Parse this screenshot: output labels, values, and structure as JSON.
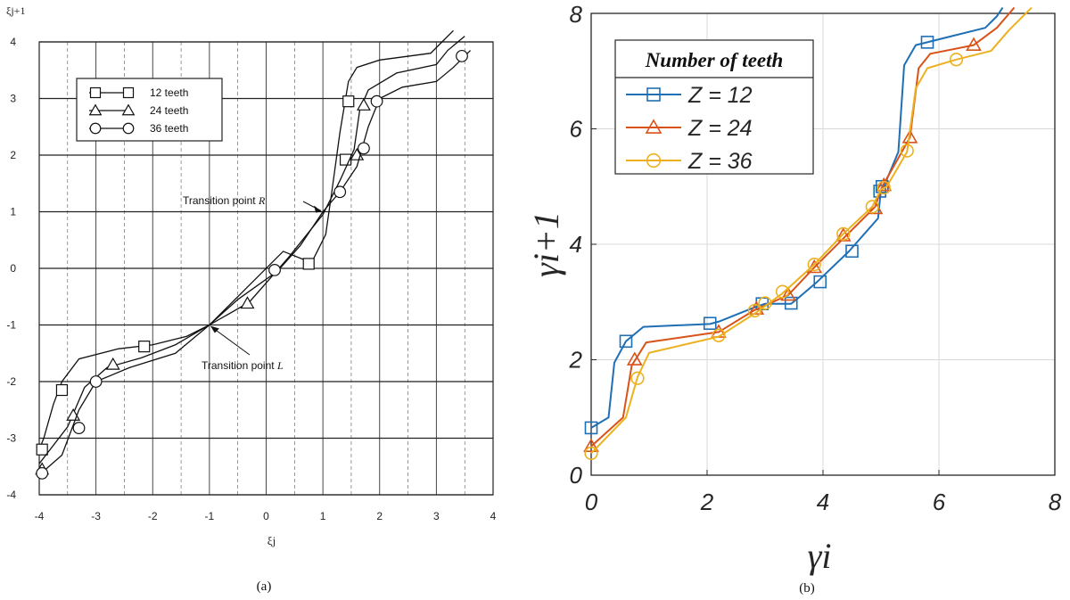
{
  "chart_data": [
    {
      "type": "line",
      "panel_label": "(a)",
      "xlabel": "ξj",
      "ylabel": "ξj+1",
      "xlim": [
        -4,
        4
      ],
      "ylim": [
        -4,
        4
      ],
      "xticks": [
        -4,
        -3,
        -2,
        -1,
        0,
        1,
        2,
        3,
        4
      ],
      "yticks": [
        -4,
        -3,
        -2,
        -1,
        0,
        1,
        2,
        3,
        4
      ],
      "xtick_labels": [
        "-4",
        "-3",
        "-2",
        "-1",
        "0",
        "1",
        "2",
        "3",
        "4"
      ],
      "ytick_labels": [
        "-4",
        "-3",
        "-2",
        "-1",
        "0",
        "1",
        "2",
        "3",
        "4"
      ],
      "grid": true,
      "legend_position": "top-left",
      "series": [
        {
          "name": "12 teeth",
          "marker": "square",
          "color": "#111111",
          "x": [
            -4.0,
            -3.92,
            -3.75,
            -3.6,
            -3.3,
            -2.6,
            -2.0,
            -1.4,
            -1.0,
            -0.4,
            0.3,
            0.8,
            1.05,
            1.15,
            1.3,
            1.45,
            1.6,
            2.0,
            2.9,
            3.1,
            3.3
          ],
          "y": [
            -3.2,
            -3.0,
            -2.4,
            -2.0,
            -1.6,
            -1.42,
            -1.35,
            -1.2,
            -1.0,
            -0.4,
            0.3,
            0.1,
            0.6,
            1.3,
            2.4,
            3.3,
            3.55,
            3.68,
            3.8,
            4.0,
            4.2
          ],
          "points_x": [
            -3.95,
            -3.6,
            -2.15,
            0.75,
            1.4,
            1.45
          ],
          "points_y": [
            -3.2,
            -2.15,
            -1.38,
            0.08,
            1.92,
            2.95
          ]
        },
        {
          "name": "24 teeth",
          "marker": "triangle",
          "color": "#111111",
          "x": [
            -4.0,
            -3.5,
            -3.2,
            -2.8,
            -2.2,
            -1.6,
            -1.0,
            -0.3,
            0.4,
            1.0,
            1.05,
            1.3,
            1.55,
            1.65,
            1.8,
            2.3,
            3.0,
            3.2,
            3.5
          ],
          "y": [
            -3.45,
            -2.8,
            -2.1,
            -1.75,
            -1.58,
            -1.35,
            -1.0,
            -0.6,
            0.2,
            0.95,
            1.05,
            1.55,
            2.1,
            2.8,
            3.15,
            3.45,
            3.6,
            3.85,
            4.1
          ],
          "points_x": [
            -3.95,
            -3.4,
            -2.7,
            -0.33,
            1.6,
            1.72
          ],
          "points_y": [
            -3.55,
            -2.6,
            -1.7,
            -0.62,
            2.0,
            2.88
          ]
        },
        {
          "name": "36 teeth",
          "marker": "circle",
          "color": "#111111",
          "x": [
            -4.0,
            -3.6,
            -3.3,
            -3.0,
            -2.4,
            -1.6,
            -1.0,
            -0.5,
            0.2,
            0.6,
            1.0,
            1.3,
            1.6,
            1.8,
            2.0,
            2.4,
            3.0,
            3.3,
            3.6
          ],
          "y": [
            -3.65,
            -3.3,
            -2.5,
            -2.0,
            -1.75,
            -1.5,
            -1.0,
            -0.55,
            -0.05,
            0.4,
            1.0,
            1.35,
            1.8,
            2.5,
            3.0,
            3.2,
            3.3,
            3.55,
            3.85
          ],
          "points_x": [
            -3.95,
            -3.3,
            -3.0,
            0.15,
            1.3,
            1.72,
            1.95,
            3.45
          ],
          "points_y": [
            -3.62,
            -2.82,
            -2.0,
            -0.03,
            1.35,
            2.12,
            2.95,
            3.75
          ]
        }
      ],
      "annotations": [
        {
          "text": "Transition point",
          "italic_part": "R",
          "at_x": 1.0,
          "at_y": 1.0
        },
        {
          "text": "Transition point",
          "italic_part": "L",
          "at_x": -1.0,
          "at_y": -1.0
        }
      ]
    },
    {
      "type": "line",
      "panel_label": "(b)",
      "xlabel": "γi",
      "ylabel": "γi+1",
      "xlim": [
        0,
        8
      ],
      "ylim": [
        0,
        8
      ],
      "xticks": [
        0,
        2,
        4,
        6,
        8
      ],
      "yticks": [
        0,
        2,
        4,
        6,
        8
      ],
      "xtick_labels": [
        "0",
        "2",
        "4",
        "6",
        "8"
      ],
      "ytick_labels": [
        "0",
        "2",
        "4",
        "6",
        "8"
      ],
      "grid": true,
      "legend_title": "Number of teeth",
      "legend_position": "top-left",
      "series": [
        {
          "name": "Z = 12",
          "marker": "square",
          "color": "#1f6fb5",
          "x": [
            0,
            0.3,
            0.4,
            0.6,
            0.9,
            2.05,
            2.2,
            2.8,
            3.0,
            3.45,
            3.55,
            3.9,
            4.45,
            4.95,
            5.0,
            5.05,
            5.3,
            5.4,
            5.6,
            5.8,
            6.2,
            6.8,
            7.0,
            7.1
          ],
          "y": [
            0.82,
            1.0,
            1.95,
            2.32,
            2.57,
            2.62,
            2.66,
            2.9,
            2.97,
            2.97,
            3.05,
            3.35,
            3.88,
            4.45,
            4.95,
            5.0,
            5.6,
            7.1,
            7.45,
            7.5,
            7.6,
            7.75,
            7.95,
            8.1
          ],
          "points_x": [
            0,
            0.6,
            2.05,
            2.95,
            3.45,
            3.95,
            4.5,
            4.98,
            5.02,
            5.8
          ],
          "points_y": [
            0.82,
            2.32,
            2.63,
            2.97,
            2.98,
            3.35,
            3.88,
            4.92,
            5.0,
            7.5
          ]
        },
        {
          "name": "Z = 24",
          "marker": "triangle",
          "color": "#d95319",
          "x": [
            0,
            0.55,
            0.7,
            0.95,
            2.2,
            2.8,
            3.4,
            3.85,
            4.4,
            4.9,
            5.0,
            5.05,
            5.5,
            5.65,
            5.85,
            6.6,
            7.0,
            7.3
          ],
          "y": [
            0.5,
            1.0,
            1.9,
            2.3,
            2.48,
            2.85,
            3.12,
            3.6,
            4.15,
            4.65,
            4.95,
            5.05,
            5.85,
            7.05,
            7.3,
            7.45,
            7.75,
            8.1
          ],
          "points_x": [
            0,
            0.75,
            2.2,
            2.85,
            3.4,
            3.85,
            4.35,
            4.9,
            5.05,
            5.5,
            6.6
          ],
          "points_y": [
            0.5,
            2.0,
            2.48,
            2.88,
            3.12,
            3.6,
            4.15,
            4.62,
            5.02,
            5.85,
            7.45
          ]
        },
        {
          "name": "Z = 36",
          "marker": "circle",
          "color": "#edb120",
          "x": [
            0,
            0.6,
            0.8,
            1.0,
            2.2,
            2.85,
            3.3,
            3.85,
            4.35,
            4.85,
            5.0,
            5.1,
            5.45,
            5.6,
            5.8,
            6.3,
            6.9,
            7.2,
            7.6
          ],
          "y": [
            0.38,
            1.0,
            1.7,
            2.12,
            2.4,
            2.82,
            3.15,
            3.65,
            4.18,
            4.65,
            4.95,
            5.0,
            5.6,
            6.7,
            7.05,
            7.2,
            7.35,
            7.7,
            8.1
          ],
          "points_x": [
            0,
            0.8,
            2.2,
            2.82,
            3.0,
            3.3,
            3.85,
            4.35,
            4.85,
            5.05,
            5.45,
            6.3
          ],
          "points_y": [
            0.38,
            1.68,
            2.42,
            2.85,
            2.98,
            3.18,
            3.65,
            4.18,
            4.65,
            4.98,
            5.62,
            7.2
          ]
        }
      ]
    }
  ]
}
